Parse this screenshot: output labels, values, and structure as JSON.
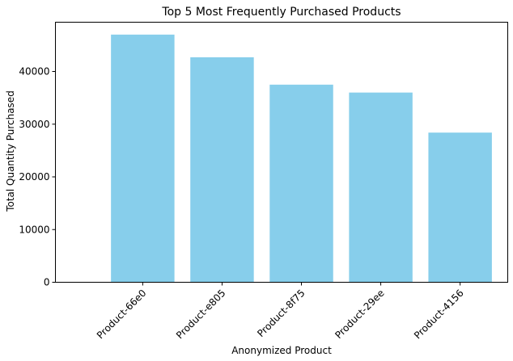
{
  "chart_data": {
    "type": "bar",
    "title": "Top 5 Most Frequently Purchased Products",
    "xlabel": "Anonymized Product",
    "ylabel": "Total Quantity Purchased",
    "categories": [
      "Product-66e0",
      "Product-e805",
      "Product-8f75",
      "Product-29ee",
      "Product-4156"
    ],
    "values": [
      47000,
      42700,
      37500,
      36000,
      28400
    ],
    "ylim": [
      0,
      49350
    ],
    "yticks": [
      0,
      10000,
      20000,
      30000,
      40000
    ],
    "grid": false,
    "bar_color": "#87ceeb"
  }
}
